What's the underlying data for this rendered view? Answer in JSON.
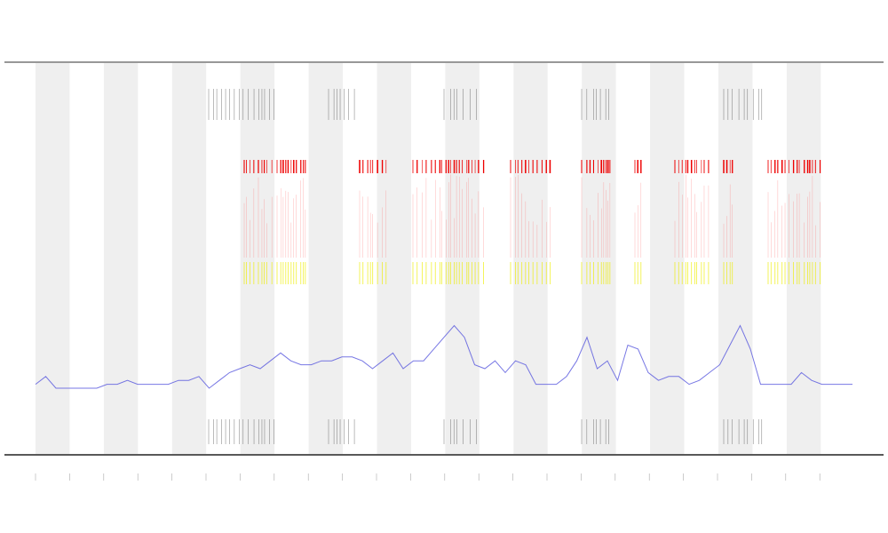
{
  "chart_data": {
    "type": "line",
    "color": "#5555dd",
    "ylim": [
      0,
      100
    ],
    "values": [
      18,
      20,
      17,
      17,
      17,
      17,
      17,
      18,
      18,
      19,
      18,
      18,
      18,
      18,
      19,
      19,
      20,
      17,
      19,
      21,
      22,
      23,
      22,
      24,
      26,
      24,
      23,
      23,
      24,
      24,
      25,
      25,
      24,
      22,
      24,
      26,
      22,
      24,
      24,
      27,
      30,
      33,
      30,
      23,
      22,
      24,
      21,
      24,
      23,
      18,
      18,
      18,
      20,
      24,
      30,
      22,
      24,
      19,
      28,
      27,
      21,
      19,
      20,
      20,
      18,
      19,
      21,
      23,
      28,
      33,
      27,
      18,
      18,
      18,
      18,
      21,
      19,
      18,
      18,
      18,
      18
    ]
  }
}
